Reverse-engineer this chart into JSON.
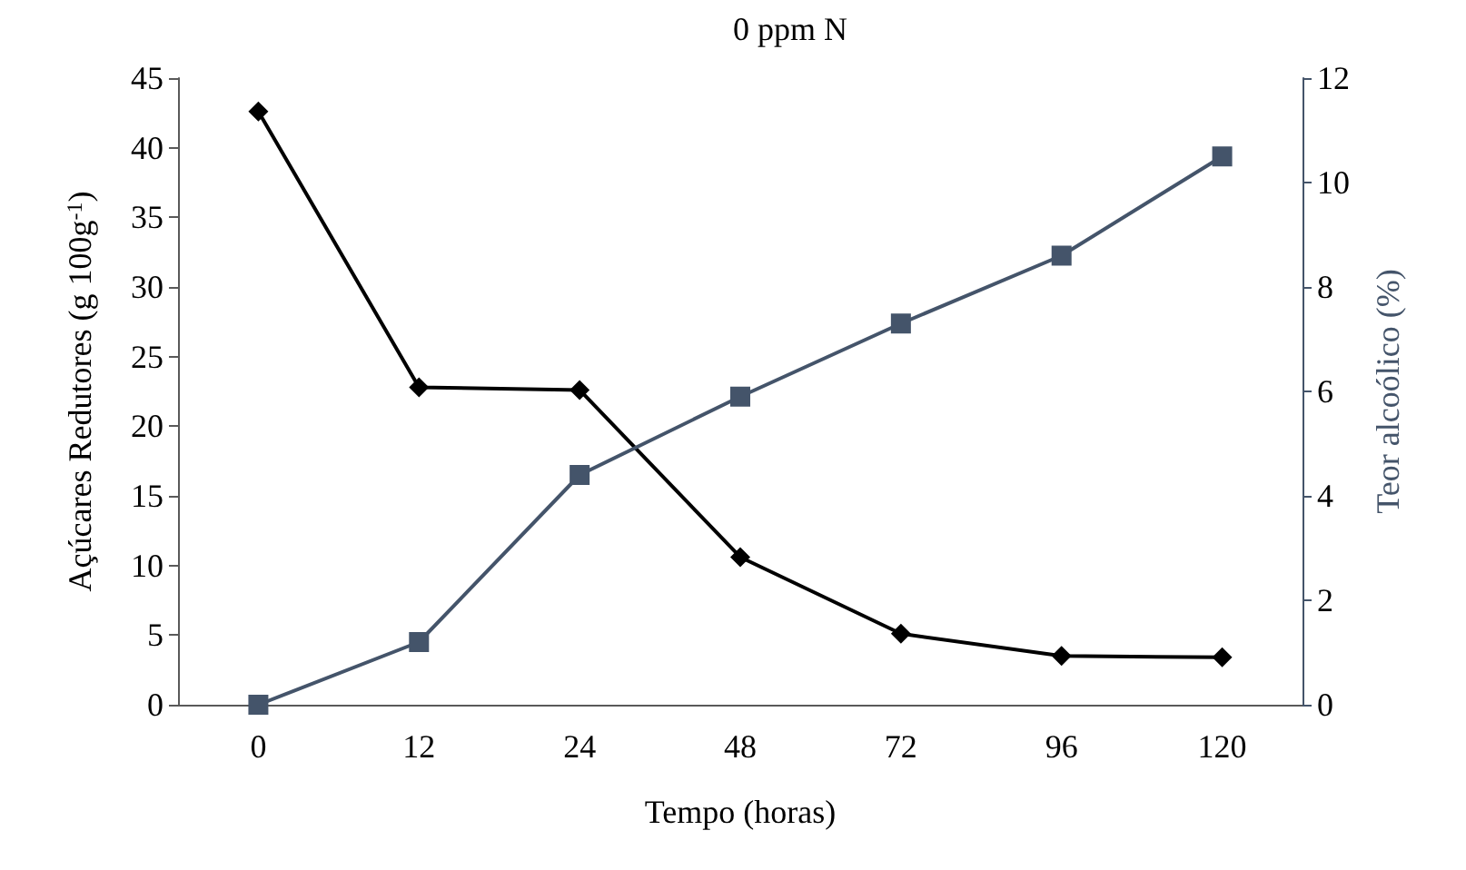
{
  "chart_data": {
    "type": "line",
    "title": "0 ppm N",
    "xlabel": "Tempo (horas)",
    "ylabel": "Açúcares Redutores (g 100g$^{-1}$)",
    "y2label": "Teor alcoólico (%)",
    "categories": [
      "0",
      "12",
      "24",
      "48",
      "72",
      "96",
      "120"
    ],
    "series": [
      {
        "color": "#000000",
        "marker": "diamond",
        "values": [
          42.6,
          22.8,
          22.6,
          10.6,
          5.1,
          3.5,
          3.4
        ]
      },
      {
        "color": "#44546a",
        "marker": "square",
        "axis": "y2",
        "values": [
          0,
          1.2,
          4.4,
          5.9,
          7.3,
          8.6,
          10.5
        ]
      }
    ],
    "ylim": [
      0,
      45
    ],
    "yticks": [
      0,
      5,
      10,
      15,
      20,
      25,
      30,
      35,
      40,
      45
    ],
    "y2lim": [
      0,
      12
    ],
    "y2ticks": [
      0,
      2,
      4,
      6,
      8,
      10,
      12
    ],
    "grid": false,
    "line_style": "solid"
  }
}
